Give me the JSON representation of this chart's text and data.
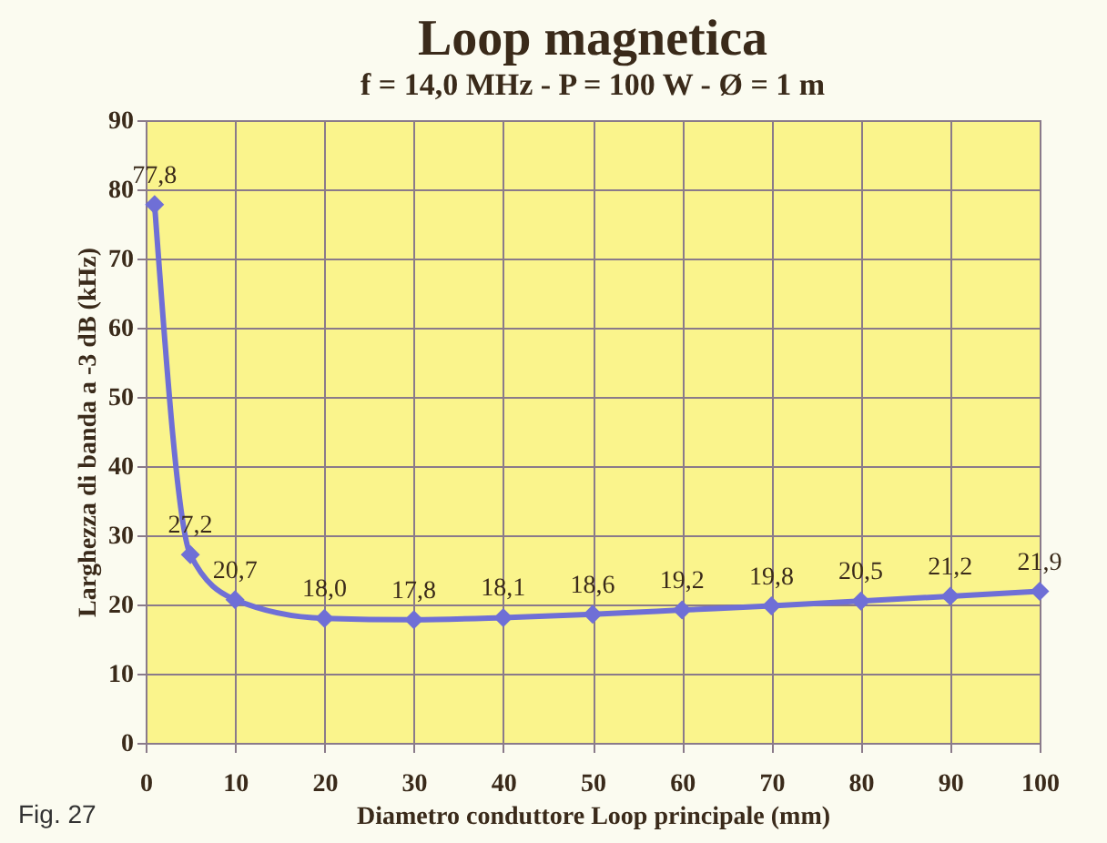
{
  "chart_data": {
    "type": "line",
    "title": "Loop magnetica",
    "subtitle": "f = 14,0 MHz - P = 100 W - Ø = 1 m",
    "xlabel": "Diametro conduttore Loop principale (mm)",
    "ylabel": "Larghezza di banda a -3 dB (kHz)",
    "x": [
      1,
      5,
      10,
      20,
      30,
      40,
      50,
      60,
      70,
      80,
      90,
      100
    ],
    "series": [
      {
        "color": "#6f6fd6",
        "values": [
          77.8,
          27.2,
          20.7,
          18.0,
          17.8,
          18.1,
          18.6,
          19.2,
          19.8,
          20.5,
          21.2,
          21.9
        ],
        "value_labels": [
          "77,8",
          "27,2",
          "20,7",
          "18,0",
          "17,8",
          "18,1",
          "18,6",
          "19,2",
          "19,8",
          "20,5",
          "21,2",
          "21,9"
        ]
      }
    ],
    "xlim": [
      0,
      100
    ],
    "xticks": [
      0,
      10,
      20,
      30,
      40,
      50,
      60,
      70,
      80,
      90,
      100
    ],
    "ylim": [
      0,
      90
    ],
    "yticks": [
      0,
      10,
      20,
      30,
      40,
      50,
      60,
      70,
      80,
      90
    ],
    "grid": true,
    "marker": "diamond",
    "line_style": "solid",
    "annotations": [
      "Fig. 27"
    ]
  }
}
